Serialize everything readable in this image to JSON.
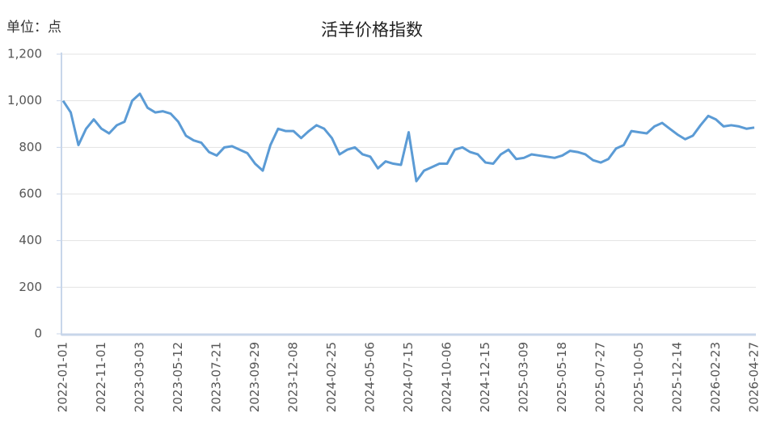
{
  "chart_data": {
    "type": "line",
    "title": "活羊价格指数",
    "unit_label": "单位：点",
    "categories": [
      "2022-01-01",
      null,
      null,
      null,
      null,
      "2022-11-01",
      null,
      null,
      null,
      null,
      "2023-03-03",
      null,
      null,
      null,
      null,
      "2023-05-12",
      null,
      null,
      null,
      null,
      "2023-07-21",
      null,
      null,
      null,
      null,
      "2023-09-29",
      null,
      null,
      null,
      null,
      "2023-12-08",
      null,
      null,
      null,
      null,
      "2024-02-25",
      null,
      null,
      null,
      null,
      "2024-05-06",
      null,
      null,
      null,
      null,
      "2024-07-15",
      null,
      null,
      null,
      null,
      "2024-10-06",
      null,
      null,
      null,
      null,
      "2024-12-15",
      null,
      null,
      null,
      null,
      "2025-03-09",
      null,
      null,
      null,
      null,
      "2025-05-18",
      null,
      null,
      null,
      null,
      "2025-07-27",
      null,
      null,
      null,
      null,
      "2025-10-05",
      null,
      null,
      null,
      null,
      "2025-12-14",
      null,
      null,
      null,
      null,
      "2026-02-23",
      null,
      null,
      null,
      null,
      "2026-04-27"
    ],
    "series": [
      {
        "name": "活羊价格指数",
        "color": "#5b9bd5",
        "values": [
          1000,
          950,
          810,
          880,
          920,
          880,
          860,
          895,
          910,
          1000,
          1030,
          970,
          950,
          955,
          945,
          910,
          850,
          830,
          820,
          780,
          765,
          800,
          805,
          790,
          775,
          730,
          700,
          810,
          880,
          870,
          870,
          840,
          870,
          895,
          880,
          840,
          770,
          790,
          800,
          770,
          760,
          710,
          740,
          730,
          725,
          865,
          655,
          700,
          715,
          730,
          730,
          790,
          800,
          780,
          770,
          735,
          730,
          770,
          790,
          750,
          755,
          770,
          765,
          760,
          755,
          765,
          785,
          780,
          770,
          745,
          735,
          750,
          795,
          810,
          870,
          865,
          860,
          890,
          905,
          880,
          855,
          835,
          850,
          895,
          935,
          920,
          890,
          895,
          890,
          880,
          885
        ]
      }
    ],
    "ylim": [
      0,
      1200
    ],
    "yticks": [
      0,
      200,
      400,
      600,
      800,
      {
        "value": 1000,
        "label": "1,000"
      },
      {
        "value": 1200,
        "label": "1,200"
      }
    ],
    "grid": true
  }
}
